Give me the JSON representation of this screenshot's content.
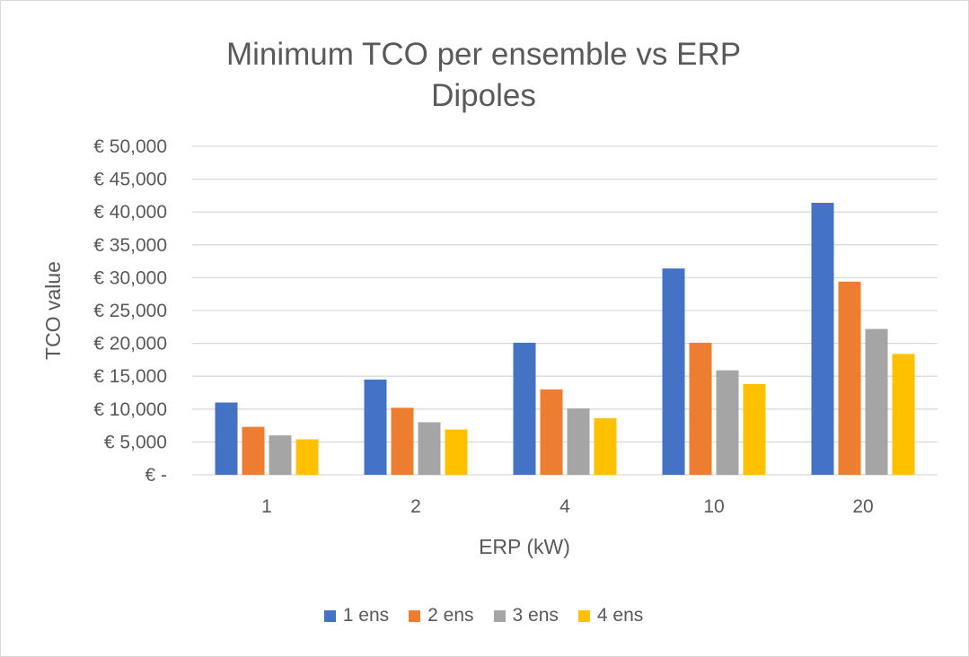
{
  "chart_data": {
    "type": "bar",
    "title_line1": "Minimum TCO per ensemble vs ERP",
    "title_line2": "Dipoles",
    "xlabel": "ERP (kW)",
    "ylabel": "TCO value",
    "categories": [
      "1",
      "2",
      "4",
      "10",
      "20"
    ],
    "ylim": [
      0,
      50000
    ],
    "y_ticks": [
      {
        "value": 0,
        "label": "€ -"
      },
      {
        "value": 5000,
        "label": "€ 5,000"
      },
      {
        "value": 10000,
        "label": "€ 10,000"
      },
      {
        "value": 15000,
        "label": "€ 15,000"
      },
      {
        "value": 20000,
        "label": "€ 20,000"
      },
      {
        "value": 25000,
        "label": "€ 25,000"
      },
      {
        "value": 30000,
        "label": "€ 30,000"
      },
      {
        "value": 35000,
        "label": "€ 35,000"
      },
      {
        "value": 40000,
        "label": "€ 40,000"
      },
      {
        "value": 45000,
        "label": "€ 45,000"
      },
      {
        "value": 50000,
        "label": "€ 50,000"
      }
    ],
    "grid": true,
    "legend_position": "bottom",
    "series": [
      {
        "name": "1 ens",
        "color": "#4472c4",
        "values": [
          11000,
          14500,
          20100,
          31400,
          41400
        ]
      },
      {
        "name": "2 ens",
        "color": "#ed7d31",
        "values": [
          7300,
          10200,
          13000,
          20100,
          29400
        ]
      },
      {
        "name": "3 ens",
        "color": "#a5a5a5",
        "values": [
          6000,
          8000,
          10100,
          15900,
          22200
        ]
      },
      {
        "name": "4 ens",
        "color": "#ffc000",
        "values": [
          5400,
          6900,
          8600,
          13800,
          18400
        ]
      }
    ]
  }
}
